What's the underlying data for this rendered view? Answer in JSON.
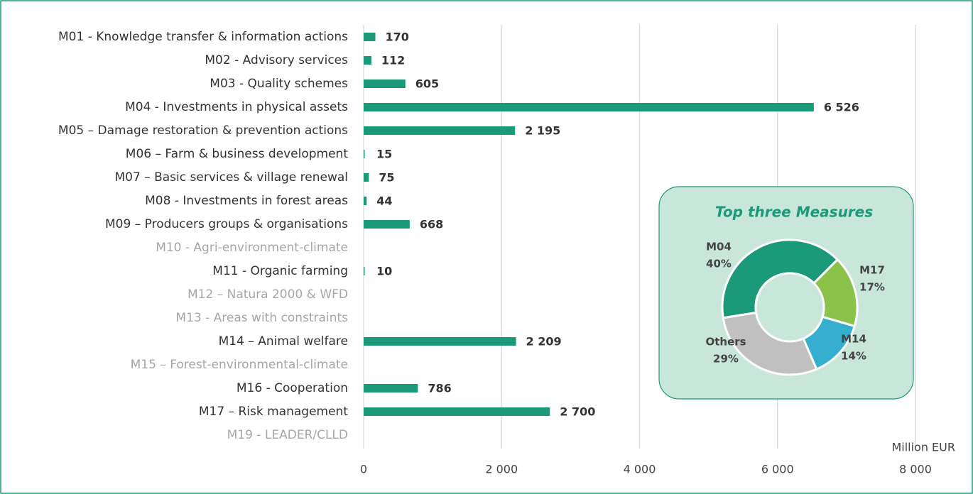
{
  "chart_data": [
    {
      "type": "bar",
      "categories": [
        "M01 - Knowledge transfer & information actions",
        "M02 - Advisory services",
        "M03 - Quality schemes",
        "M04 - Investments in physical assets",
        "M05 – Damage restoration & prevention actions",
        "M06 – Farm & business development",
        "M07 – Basic services & village renewal",
        "M08 - Investments in forest areas",
        "M09 – Producers groups  & organisations",
        "M10 - Agri-environment-climate",
        "M11 - Organic farming",
        "M12 – Natura 2000 & WFD",
        "M13 - Areas with constraints",
        "M14 – Animal welfare",
        "M15 – Forest-environmental-climate",
        "M16 - Cooperation",
        "M17 – Risk management",
        "M19 - LEADER/CLLD"
      ],
      "values": [
        170,
        112,
        605,
        6526,
        2195,
        15,
        75,
        44,
        668,
        null,
        10,
        null,
        null,
        2209,
        null,
        786,
        2700,
        null
      ],
      "value_labels": [
        "170",
        "112",
        "605",
        "6 526",
        "2 195",
        "15",
        "75",
        "44",
        "668",
        null,
        "10",
        null,
        null,
        "2 209",
        null,
        "786",
        "2 700",
        null
      ],
      "color": "#1a9a78",
      "xlabel": "Million EUR",
      "xlim": [
        0,
        8000
      ],
      "xticks": [
        0,
        {
          "value": 2000,
          "label": "2 000"
        },
        {
          "value": 4000,
          "label": "4 000"
        },
        {
          "value": 6000,
          "label": "6 000"
        },
        {
          "value": 8000,
          "label": "8 000"
        }
      ],
      "grid": true
    },
    {
      "type": "donut",
      "title": "Top three Measures",
      "categories": [
        "M04",
        "M17",
        "M14",
        "Others"
      ],
      "values": [
        40,
        17,
        14,
        29
      ],
      "value_labels": [
        "40%",
        "17%",
        "14%",
        "29%"
      ],
      "colors": [
        "#1a9a78",
        "#8bc34a",
        "#35aed0",
        "#c0c0c0"
      ]
    }
  ]
}
